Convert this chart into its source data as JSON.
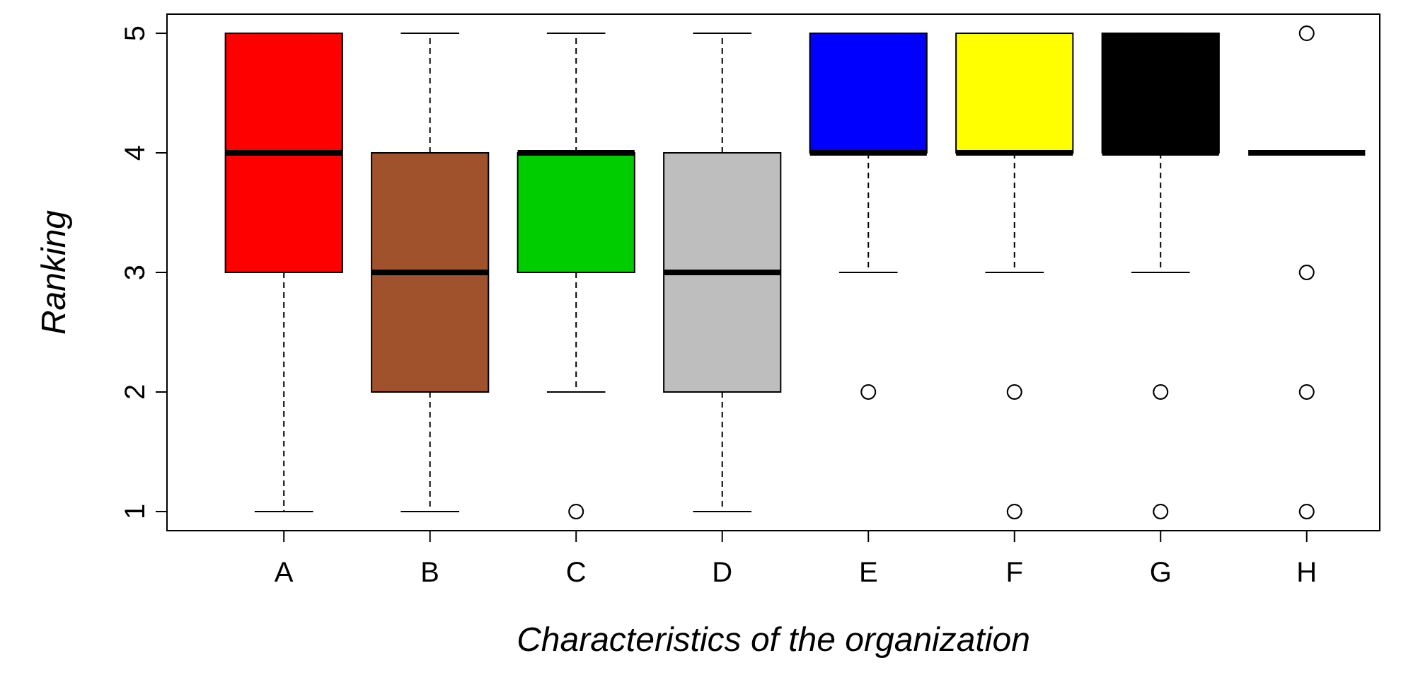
{
  "chart_data": {
    "type": "box",
    "xlabel": "Characteristics of the organization",
    "ylabel": "Ranking",
    "categories": [
      "A",
      "B",
      "C",
      "D",
      "E",
      "F",
      "G",
      "H"
    ],
    "colors": [
      "#ff0000",
      "#a0522d",
      "#00cd00",
      "#bebebe",
      "#0000ff",
      "#ffff00",
      "#000000",
      null
    ],
    "boxes": [
      {
        "low": 1,
        "q1": 3,
        "median": 4,
        "q3": 5,
        "high": 5
      },
      {
        "low": 1,
        "q1": 2,
        "median": 3,
        "q3": 4,
        "high": 5
      },
      {
        "low": 2,
        "q1": 3,
        "median": 4,
        "q3": 4,
        "high": 5,
        "outliers": [
          1
        ]
      },
      {
        "low": 1,
        "q1": 2,
        "median": 3,
        "q3": 4,
        "high": 5
      },
      {
        "low": 3,
        "q1": 4,
        "median": 4,
        "q3": 5,
        "high": 5,
        "outliers": [
          2
        ]
      },
      {
        "low": 3,
        "q1": 4,
        "median": 4,
        "q3": 5,
        "high": 5,
        "outliers": [
          2,
          1
        ]
      },
      {
        "low": 3,
        "q1": 4,
        "median": 4,
        "q3": 5,
        "high": 5,
        "outliers": [
          2,
          1
        ]
      },
      {
        "low": 4,
        "q1": 4,
        "median": 4,
        "q3": 4,
        "high": 4,
        "outliers": [
          5,
          3,
          2,
          1
        ]
      }
    ],
    "ylim": [
      0.84,
      5.16
    ],
    "yticks": [
      1,
      2,
      3,
      4,
      5
    ]
  }
}
